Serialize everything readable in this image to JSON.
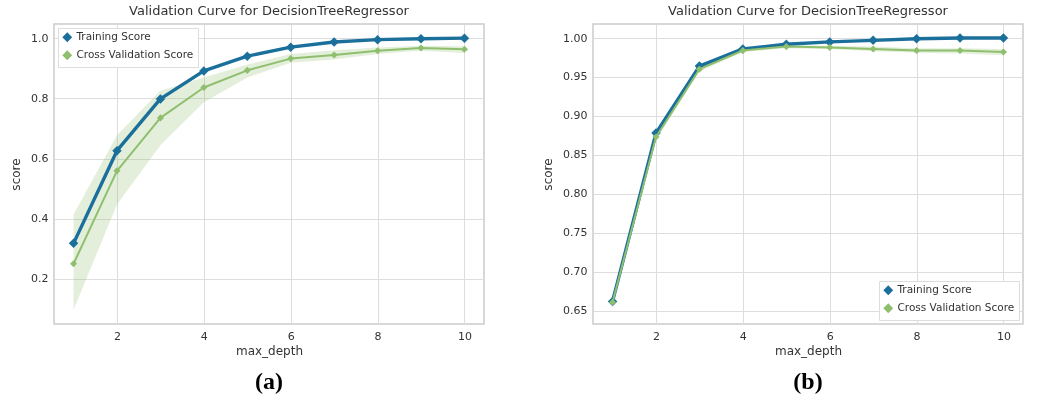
{
  "chart_data": [
    {
      "type": "line",
      "title": "Validation Curve for DecisionTreeRegressor",
      "xlabel": "max_depth",
      "ylabel": "score",
      "annotations": [
        "(a)"
      ],
      "x": [
        1,
        2,
        3,
        4,
        5,
        6,
        7,
        8,
        9,
        10
      ],
      "series": [
        {
          "name": "Training Score",
          "color": "#1a6f9b",
          "values": [
            0.318,
            0.626,
            0.798,
            0.891,
            0.94,
            0.97,
            0.987,
            0.995,
            0.998,
            1.0
          ]
        },
        {
          "name": "Cross Validation Score",
          "color": "#8fbf6e",
          "values": [
            0.25,
            0.559,
            0.735,
            0.836,
            0.893,
            0.932,
            0.944,
            0.958,
            0.967,
            0.963
          ],
          "lower": [
            0.097,
            0.447,
            0.644,
            0.787,
            0.869,
            0.918,
            0.929,
            0.947,
            0.958,
            0.951
          ],
          "upper": [
            0.414,
            0.677,
            0.825,
            0.869,
            0.912,
            0.947,
            0.96,
            0.969,
            0.975,
            0.973
          ]
        }
      ],
      "xlim": [
        0.55,
        10.45
      ],
      "xticks": [
        2,
        4,
        6,
        8,
        10
      ],
      "ylim": [
        0.05,
        1.047
      ],
      "yticks": [
        0.2,
        0.4,
        0.6,
        0.8,
        {
          "value": 1,
          "label": "1.0"
        }
      ],
      "grid": true,
      "legend": "top left",
      "marker": "diamond"
    },
    {
      "type": "line",
      "title": "Validation Curve for DecisionTreeRegressor",
      "xlabel": "max_depth",
      "ylabel": "score",
      "annotations": [
        "(b)"
      ],
      "x": [
        1,
        2,
        3,
        4,
        5,
        6,
        7,
        8,
        9,
        10
      ],
      "series": [
        {
          "name": "Training Score",
          "color": "#1a6f9b",
          "values": [
            0.662,
            0.878,
            0.964,
            0.986,
            0.992,
            0.995,
            0.997,
            0.999,
            1.0,
            1.0
          ]
        },
        {
          "name": "Cross Validation Score",
          "color": "#8fbf6e",
          "values": [
            0.661,
            0.873,
            0.96,
            0.984,
            0.989,
            0.988,
            0.986,
            0.984,
            0.984,
            0.982
          ],
          "lower": [
            0.657,
            0.869,
            0.957,
            0.982,
            0.987,
            0.986,
            0.983,
            0.981,
            0.98,
            0.978
          ],
          "upper": [
            0.665,
            0.877,
            0.963,
            0.986,
            0.991,
            0.99,
            0.989,
            0.987,
            0.987,
            0.986
          ]
        }
      ],
      "xlim": [
        0.55,
        10.45
      ],
      "xticks": [
        2,
        4,
        6,
        8,
        10
      ],
      "ylim": [
        0.633,
        1.018
      ],
      "yticks": [
        0.65,
        {
          "value": 0.7,
          "label": "0.70"
        },
        0.75,
        {
          "value": 0.8,
          "label": "0.80"
        },
        0.85,
        {
          "value": 0.9,
          "label": "0.90"
        },
        0.95,
        {
          "value": 1,
          "label": "1.00"
        }
      ],
      "grid": true,
      "legend": "bottom right",
      "marker": "diamond"
    }
  ]
}
